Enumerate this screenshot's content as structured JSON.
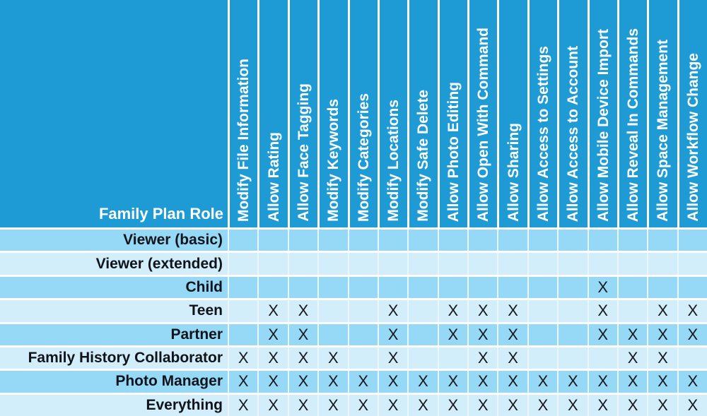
{
  "colors": {
    "header_bg": "#1E9BD5",
    "header_text": "#FFFFFF",
    "row_dark": "#95D9F6",
    "row_light": "#D2EEFB",
    "grid_line": "#FFFFFF",
    "grid_line_soft": "#EAF7FE",
    "label_text": "#10141A",
    "mark_text": "#15181C"
  },
  "chart_data": {
    "type": "table",
    "title": "Family Plan Role permissions matrix",
    "corner_label": "Family Plan Role",
    "mark_glyph": "X",
    "columns": [
      "Modify File Information",
      "Allow Rating",
      "Allow Face Tagging",
      "Modify Keywords",
      "Modify Categories",
      "Modify Locations",
      "Modify Safe Delete",
      "Allow Photo Editing",
      "Allow Open With Command",
      "Allow Sharing",
      "Allow Access to Settings",
      "Allow Access to Account",
      "Allow Mobile Device Import",
      "Allow Reveal In Commands",
      "Allow Space Management",
      "Allow Workflow Change"
    ],
    "rows": [
      {
        "label": "Viewer (basic)",
        "marks": [
          "",
          "",
          "",
          "",
          "",
          "",
          "",
          "",
          "",
          "",
          "",
          "",
          "",
          "",
          "",
          ""
        ]
      },
      {
        "label": "Viewer (extended)",
        "marks": [
          "",
          "",
          "",
          "",
          "",
          "",
          "",
          "",
          "",
          "",
          "",
          "",
          "",
          "",
          "",
          ""
        ]
      },
      {
        "label": "Child",
        "marks": [
          "",
          "",
          "",
          "",
          "",
          "",
          "",
          "",
          "",
          "",
          "",
          "",
          "X",
          "",
          "",
          ""
        ]
      },
      {
        "label": "Teen",
        "marks": [
          "",
          "X",
          "X",
          "",
          "",
          "X",
          "",
          "X",
          "X",
          "X",
          "",
          "",
          "X",
          "",
          "X",
          "X"
        ]
      },
      {
        "label": "Partner",
        "marks": [
          "",
          "X",
          "X",
          "",
          "",
          "X",
          "",
          "X",
          "X",
          "X",
          "",
          "",
          "X",
          "X",
          "X",
          "X"
        ]
      },
      {
        "label": "Family History Collaborator",
        "marks": [
          "X",
          "X",
          "X",
          "X",
          "",
          "X",
          "",
          "",
          "X",
          "X",
          "",
          "",
          "",
          "X",
          "X",
          ""
        ]
      },
      {
        "label": "Photo Manager",
        "marks": [
          "X",
          "X",
          "X",
          "X",
          "X",
          "X",
          "X",
          "X",
          "X",
          "X",
          "X",
          "X",
          "X",
          "X",
          "X",
          "X"
        ]
      },
      {
        "label": "Everything",
        "marks": [
          "X",
          "X",
          "X",
          "X",
          "X",
          "X",
          "X",
          "X",
          "X",
          "X",
          "X",
          "X",
          "X",
          "X",
          "X",
          "X"
        ]
      }
    ]
  }
}
